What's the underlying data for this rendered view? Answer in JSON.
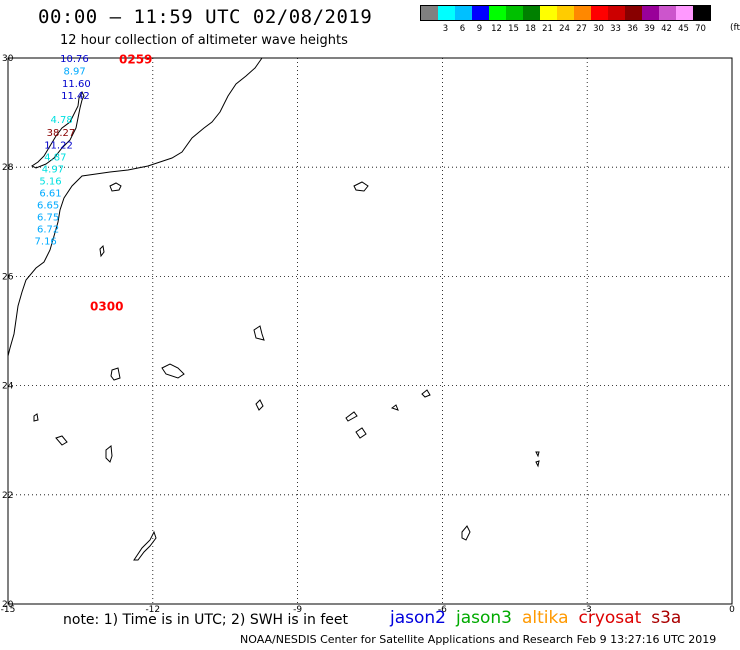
{
  "header": {
    "title": "00:00 – 11:59 UTC 02/08/2019",
    "subtitle": "12 hour collection of altimeter wave heights"
  },
  "legend": {
    "unit": "(ft)",
    "items": [
      {
        "label": "",
        "color": "#808080"
      },
      {
        "label": "3",
        "color": "#00ffff"
      },
      {
        "label": "6",
        "color": "#00c0ff"
      },
      {
        "label": "9",
        "color": "#0000ff"
      },
      {
        "label": "12",
        "color": "#00ff00"
      },
      {
        "label": "15",
        "color": "#00c000"
      },
      {
        "label": "18",
        "color": "#008000"
      },
      {
        "label": "21",
        "color": "#ffff00"
      },
      {
        "label": "24",
        "color": "#ffcc00"
      },
      {
        "label": "27",
        "color": "#ff8800"
      },
      {
        "label": "30",
        "color": "#ff0000"
      },
      {
        "label": "33",
        "color": "#cc0000"
      },
      {
        "label": "36",
        "color": "#880000"
      },
      {
        "label": "39",
        "color": "#990099"
      },
      {
        "label": "42",
        "color": "#cc55cc"
      },
      {
        "label": "45",
        "color": "#ff99ff"
      },
      {
        "label": "70",
        "color": "#000000"
      }
    ]
  },
  "map": {
    "lon_range": [
      -15,
      0
    ],
    "lat_range": [
      20,
      30
    ],
    "lon_ticks": [
      "-15",
      "-12",
      "-9",
      "-6",
      "-3",
      "0"
    ],
    "lat_ticks": [
      "30",
      "28",
      "26",
      "24",
      "22",
      "20"
    ],
    "lat_tick_values": [
      30,
      28,
      26,
      24,
      22,
      20
    ],
    "lon_tick_values": [
      -15,
      -12,
      -9,
      -6,
      -3,
      0
    ],
    "time_labels": [
      {
        "text": "0259",
        "lon": -12.7,
        "lat": 29.97,
        "color": "#ff0000"
      },
      {
        "text": "0300",
        "lon": -13.3,
        "lat": 25.45,
        "color": "#ff0000"
      }
    ],
    "observations": [
      {
        "value": "10.76",
        "lon": -13.92,
        "lat": 29.98,
        "color": "#0000cc"
      },
      {
        "value": "8.97",
        "lon": -13.85,
        "lat": 29.75,
        "color": "#00aaff"
      },
      {
        "value": "11.60",
        "lon": -13.88,
        "lat": 29.52,
        "color": "#0000cc"
      },
      {
        "value": "11.42",
        "lon": -13.9,
        "lat": 29.3,
        "color": "#0000cc"
      },
      {
        "value": "4.78",
        "lon": -14.12,
        "lat": 28.86,
        "color": "#00e0e0"
      },
      {
        "value": "38.27",
        "lon": -14.2,
        "lat": 28.63,
        "color": "#880000"
      },
      {
        "value": "11.22",
        "lon": -14.25,
        "lat": 28.4,
        "color": "#0000cc"
      },
      {
        "value": "4.87",
        "lon": -14.25,
        "lat": 28.18,
        "color": "#00e0e0"
      },
      {
        "value": "4.97",
        "lon": -14.3,
        "lat": 27.96,
        "color": "#00e0e0"
      },
      {
        "value": "5.16",
        "lon": -14.35,
        "lat": 27.74,
        "color": "#00e0e0"
      },
      {
        "value": "6.61",
        "lon": -14.35,
        "lat": 27.52,
        "color": "#00aaff"
      },
      {
        "value": "6.65",
        "lon": -14.4,
        "lat": 27.3,
        "color": "#00aaff"
      },
      {
        "value": "6.75",
        "lon": -14.4,
        "lat": 27.08,
        "color": "#00aaff"
      },
      {
        "value": "6.72",
        "lon": -14.4,
        "lat": 26.86,
        "color": "#00aaff"
      },
      {
        "value": "7.16",
        "lon": -14.45,
        "lat": 26.64,
        "color": "#00aaff"
      }
    ]
  },
  "footer": {
    "note": "note: 1) Time is in UTC; 2) SWH is in feet",
    "missions": [
      {
        "name": "jason2",
        "color": "#0000dd"
      },
      {
        "name": "jason3",
        "color": "#00aa00"
      },
      {
        "name": "altika",
        "color": "#ff9900"
      },
      {
        "name": "cryosat",
        "color": "#dd0000"
      },
      {
        "name": "s3a",
        "color": "#aa0000"
      }
    ],
    "credit": "NOAA/NESDIS Center for Satellite Applications and Research    Feb  9 13:27:16 UTC 2019"
  }
}
